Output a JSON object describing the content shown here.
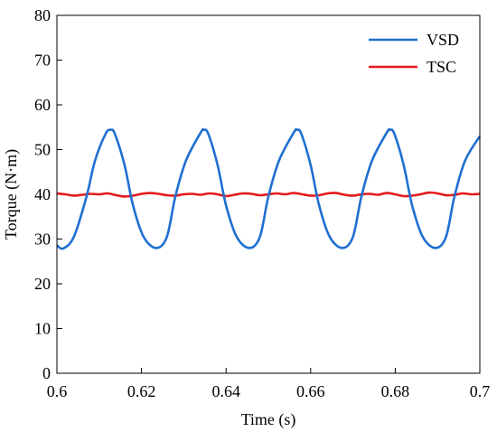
{
  "chart_data": {
    "type": "line",
    "title": "",
    "xlabel": "Time (s)",
    "ylabel": "Torque (N·m)",
    "xlim": [
      0.6,
      0.7
    ],
    "ylim": [
      0,
      80
    ],
    "xticks": [
      0.6,
      0.62,
      0.64,
      0.66,
      0.68,
      0.7
    ],
    "xtick_labels": [
      "0.6",
      "0.62",
      "0.64",
      "0.66",
      "0.68",
      "0.7"
    ],
    "yticks": [
      0,
      10,
      20,
      30,
      40,
      50,
      60,
      70,
      80
    ],
    "ytick_labels": [
      "0",
      "10",
      "20",
      "30",
      "40",
      "50",
      "60",
      "70",
      "80"
    ],
    "grid": false,
    "legend_position": "top-right",
    "series": [
      {
        "name": "VSD",
        "color": "#1f6fd1",
        "x": [
          0.6,
          0.6015,
          0.604,
          0.607,
          0.609,
          0.6115,
          0.6127,
          0.6137,
          0.616,
          0.618,
          0.6205,
          0.6235,
          0.626,
          0.628,
          0.6305,
          0.634,
          0.6348,
          0.6358,
          0.638,
          0.64,
          0.6425,
          0.6455,
          0.648,
          0.65,
          0.6525,
          0.656,
          0.6568,
          0.6578,
          0.66,
          0.662,
          0.6645,
          0.6675,
          0.67,
          0.672,
          0.6745,
          0.678,
          0.6788,
          0.6798,
          0.682,
          0.684,
          0.6865,
          0.6895,
          0.692,
          0.694,
          0.6965,
          0.7
        ],
        "values": [
          28.6,
          27.9,
          30.5,
          39.5,
          47.5,
          53.5,
          54.4,
          53.5,
          46.5,
          37.5,
          30.5,
          28.0,
          30.5,
          39.5,
          47.5,
          53.8,
          54.4,
          53.5,
          46.5,
          37.5,
          30.5,
          28.0,
          30.5,
          39.5,
          47.5,
          53.8,
          54.4,
          53.5,
          46.5,
          37.5,
          30.5,
          28.0,
          30.5,
          39.5,
          47.5,
          53.8,
          54.4,
          53.5,
          46.5,
          37.5,
          30.5,
          28.0,
          30.5,
          39.5,
          47.5,
          53.0
        ]
      },
      {
        "name": "TSC",
        "color": "#e41a1c",
        "x": [
          0.6,
          0.602,
          0.604,
          0.606,
          0.608,
          0.61,
          0.612,
          0.614,
          0.616,
          0.618,
          0.62,
          0.622,
          0.624,
          0.626,
          0.628,
          0.63,
          0.632,
          0.634,
          0.636,
          0.638,
          0.64,
          0.642,
          0.644,
          0.646,
          0.648,
          0.65,
          0.652,
          0.654,
          0.656,
          0.658,
          0.66,
          0.662,
          0.664,
          0.666,
          0.668,
          0.67,
          0.672,
          0.674,
          0.676,
          0.678,
          0.68,
          0.682,
          0.684,
          0.686,
          0.688,
          0.69,
          0.692,
          0.694,
          0.696,
          0.698,
          0.7
        ],
        "values": [
          40.2,
          40.0,
          39.7,
          39.9,
          40.1,
          40.0,
          40.2,
          39.8,
          39.5,
          39.7,
          40.1,
          40.3,
          40.1,
          39.8,
          39.7,
          40.0,
          40.1,
          39.9,
          40.2,
          40.0,
          39.6,
          39.9,
          40.2,
          40.1,
          39.8,
          40.0,
          40.2,
          40.0,
          40.3,
          40.0,
          39.7,
          39.8,
          40.2,
          40.3,
          39.9,
          39.7,
          40.0,
          40.1,
          39.9,
          40.3,
          40.0,
          39.6,
          39.7,
          40.0,
          40.4,
          40.2,
          39.8,
          39.9,
          40.2,
          40.0,
          40.1
        ]
      }
    ]
  }
}
